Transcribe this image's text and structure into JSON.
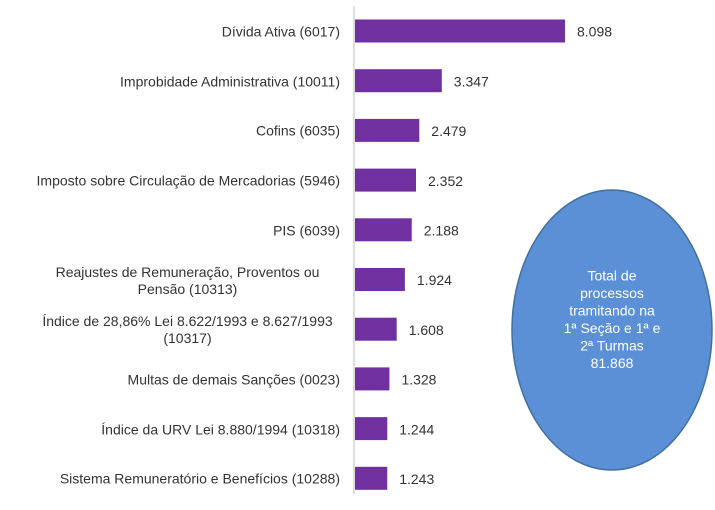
{
  "chart_data": {
    "type": "bar",
    "orientation": "horizontal",
    "categories": [
      "Dívida Ativa (6017)",
      "Improbidade Administrativa (10011)",
      "Cofins (6035)",
      "Imposto sobre Circulação de Mercadorias (5946)",
      "PIS (6039)",
      "Reajustes de Remuneração, Proventos ou Pensão (10313)",
      "Índice de 28,86% Lei 8.622/1993 e 8.627/1993 (10317)",
      "Multas de demais Sanções (0023)",
      "Índice da URV Lei 8.880/1994 (10318)",
      "Sistema Remuneratório e Benefícios (10288)"
    ],
    "values": [
      8098,
      3347,
      2479,
      2352,
      2188,
      1924,
      1608,
      1328,
      1244,
      1243
    ],
    "value_labels": [
      "8.098",
      "3.347",
      "2.479",
      "2.352",
      "2.188",
      "1.924",
      "1.608",
      "1.328",
      "1.244",
      "1.243"
    ],
    "color": "#7030a0",
    "annotation": {
      "lines": [
        "Total de",
        "processos",
        "tramitando na",
        "1ª Seção e 1ª e",
        "2ª Turmas",
        "81.868"
      ],
      "color": "#5b8fd6"
    }
  }
}
